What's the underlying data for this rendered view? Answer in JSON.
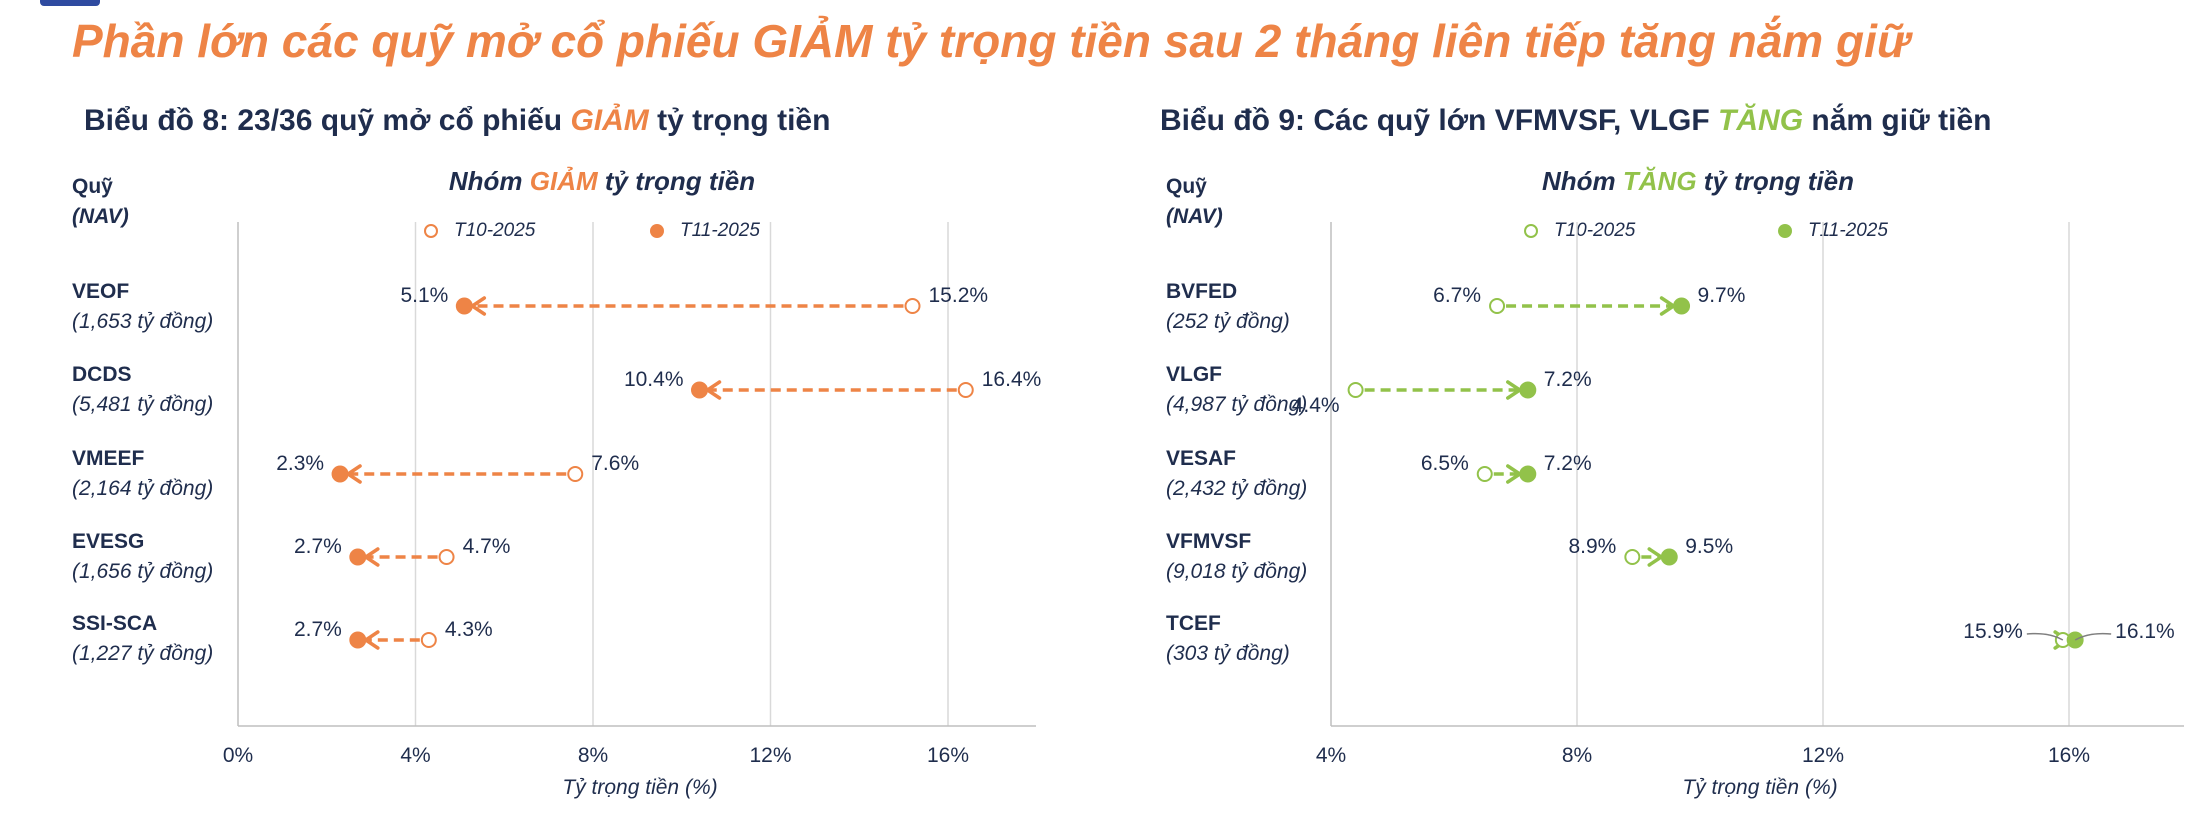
{
  "page": {
    "title": "Phần lớn các quỹ mở cổ phiếu GIẢM tỷ trọng tiền sau 2 tháng liên tiếp tăng nắm giữ"
  },
  "colors": {
    "orange": "#ee8446",
    "green": "#92c24a",
    "navy": "#1f2d4d",
    "grid": "#d9d9d9"
  },
  "chart_data": [
    {
      "type": "dumbbell",
      "title_prefix": "Biểu đồ 8: 23/36 quỹ mở cổ phiếu ",
      "title_highlight": "GIẢM",
      "title_suffix": " tỷ trọng tiền",
      "group_prefix": "Nhóm ",
      "group_highlight": "GIẢM",
      "group_suffix": " tỷ trọng tiền",
      "y_header_name": "Quỹ",
      "y_header_sub": "(NAV)",
      "legend": [
        "T10-2025",
        "T11-2025"
      ],
      "xlabel": "Tỷ trọng tiền (%)",
      "xlim": [
        0,
        18
      ],
      "xticks": [
        0,
        4,
        8,
        12,
        16
      ],
      "xtick_labels": [
        "0%",
        "4%",
        "8%",
        "12%",
        "16%"
      ],
      "color": "#ee8446",
      "funds": [
        {
          "name": "VEOF",
          "nav": "(1,653 tỷ đồng)",
          "t10": 15.2,
          "t11": 5.1,
          "t10_label": "15.2%",
          "t11_label": "5.1%"
        },
        {
          "name": "DCDS",
          "nav": "(5,481 tỷ đồng)",
          "t10": 16.4,
          "t11": 10.4,
          "t10_label": "16.4%",
          "t11_label": "10.4%"
        },
        {
          "name": "VMEEF",
          "nav": "(2,164 tỷ đồng)",
          "t10": 7.6,
          "t11": 2.3,
          "t10_label": "7.6%",
          "t11_label": "2.3%"
        },
        {
          "name": "EVESG",
          "nav": "(1,656 tỷ đồng)",
          "t10": 4.7,
          "t11": 2.7,
          "t10_label": "4.7%",
          "t11_label": "2.7%"
        },
        {
          "name": "SSI-SCA",
          "nav": "(1,227 tỷ đồng)",
          "t10": 4.3,
          "t11": 2.7,
          "t10_label": "4.3%",
          "t11_label": "2.7%"
        }
      ]
    },
    {
      "type": "dumbbell",
      "title_prefix": "Biểu đồ 9: Các quỹ lớn VFMVSF, VLGF ",
      "title_highlight": "TĂNG",
      "title_suffix": " nắm giữ tiền",
      "group_prefix": "Nhóm ",
      "group_highlight": "TĂNG",
      "group_suffix": " tỷ trọng tiền",
      "y_header_name": "Quỹ",
      "y_header_sub": "(NAV)",
      "legend": [
        "T10-2025",
        "T11-2025"
      ],
      "xlabel": "Tỷ trọng tiền (%)",
      "xlim": [
        4,
        18
      ],
      "xticks": [
        4,
        8,
        12,
        16
      ],
      "xtick_labels": [
        "4%",
        "8%",
        "12%",
        "16%"
      ],
      "color": "#92c24a",
      "funds": [
        {
          "name": "BVFED",
          "nav": "(252 tỷ đồng)",
          "t10": 6.7,
          "t11": 9.7,
          "t10_label": "6.7%",
          "t11_label": "9.7%"
        },
        {
          "name": "VLGF",
          "nav": "(4,987 tỷ đồng)",
          "t10": 4.4,
          "t11": 7.2,
          "t10_label": "4.4%",
          "t11_label": "7.2%"
        },
        {
          "name": "VESAF",
          "nav": "(2,432 tỷ đồng)",
          "t10": 6.5,
          "t11": 7.2,
          "t10_label": "6.5%",
          "t11_label": "7.2%"
        },
        {
          "name": "VFMVSF",
          "nav": "(9,018 tỷ đồng)",
          "t10": 8.9,
          "t11": 9.5,
          "t10_label": "8.9%",
          "t11_label": "9.5%"
        },
        {
          "name": "TCEF",
          "nav": "(303 tỷ đồng)",
          "t10": 15.9,
          "t11": 16.1,
          "t10_label": "15.9%",
          "t11_label": "16.1%"
        }
      ]
    }
  ]
}
